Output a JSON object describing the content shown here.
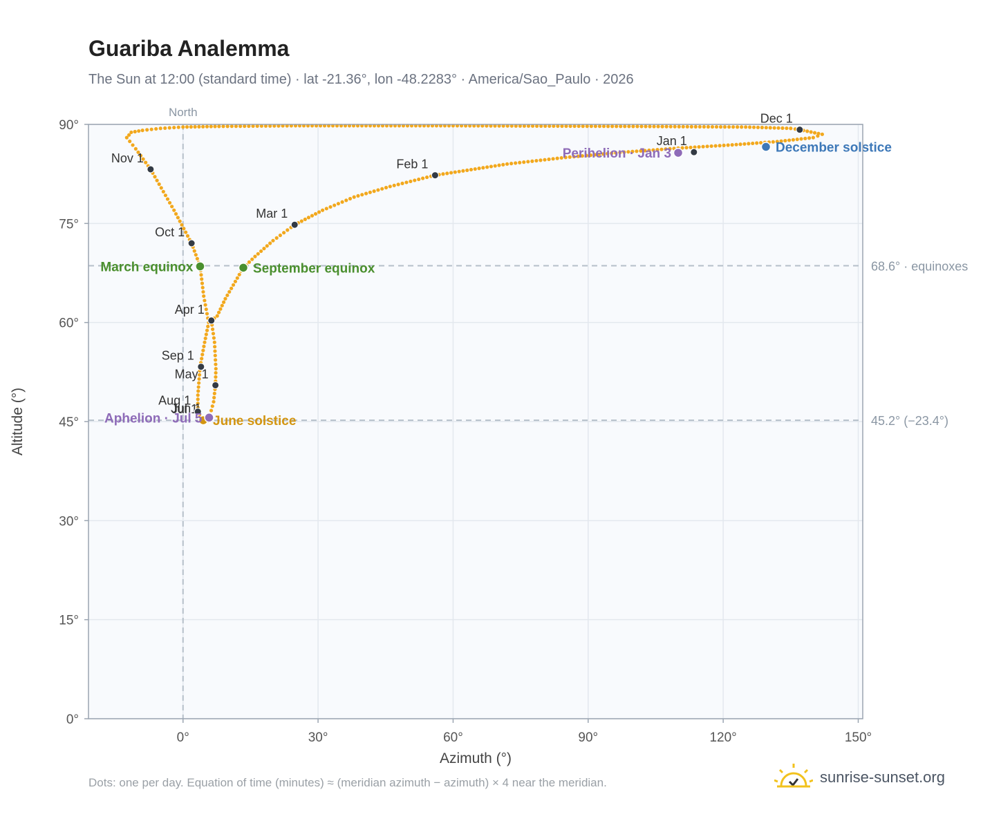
{
  "header": {
    "title": "Guariba Analemma",
    "subtitle": "The Sun at 12:00 (standard time) · lat -21.36°, lon -48.2283° · America/Sao_Paulo · 2026"
  },
  "footer": {
    "note": "Dots: one per day. Equation of time (minutes) ≈ (meridian azimuth − azimuth) × 4 near the meridian.",
    "brand": "sunrise-sunset.org",
    "brand_icon": "sun-rising-icon"
  },
  "chart_data": {
    "type": "scatter",
    "xlabel": "Azimuth (°)",
    "ylabel": "Altitude (°)",
    "xlim": [
      -21,
      151
    ],
    "ylim": [
      0,
      90
    ],
    "x_ticks": [
      {
        "value": 0,
        "label": "0°"
      },
      {
        "value": 30,
        "label": "30°"
      },
      {
        "value": 60,
        "label": "60°"
      },
      {
        "value": 90,
        "label": "90°"
      },
      {
        "value": 120,
        "label": "120°"
      },
      {
        "value": 150,
        "label": "150°"
      }
    ],
    "y_ticks": [
      {
        "value": 0,
        "label": "0°"
      },
      {
        "value": 15,
        "label": "15°"
      },
      {
        "value": 30,
        "label": "30°"
      },
      {
        "value": 45,
        "label": "45°"
      },
      {
        "value": 60,
        "label": "60°"
      },
      {
        "value": 75,
        "label": "75°"
      },
      {
        "value": 90,
        "label": "90°"
      }
    ],
    "grid": true,
    "meridian": {
      "azimuth": 0,
      "label": "North"
    },
    "reference_lines": [
      {
        "altitude": 68.6,
        "label": "68.6° · equinoxes"
      },
      {
        "altitude": 45.2,
        "label": "45.2° (−23.4°)"
      }
    ],
    "path_color": "#f2a81d",
    "path": [
      [
        137.0,
        89.2
      ],
      [
        142.0,
        88.5
      ],
      [
        140.0,
        88.0
      ],
      [
        132.0,
        87.4
      ],
      [
        122.0,
        86.9
      ],
      [
        110.0,
        86.4
      ],
      [
        98.0,
        85.8
      ],
      [
        85.0,
        85.0
      ],
      [
        72.0,
        84.0
      ],
      [
        56.0,
        82.3
      ],
      [
        46.0,
        80.6
      ],
      [
        38.0,
        79.0
      ],
      [
        31.0,
        77.0
      ],
      [
        24.8,
        74.8
      ],
      [
        20.0,
        72.4
      ],
      [
        16.0,
        70.0
      ],
      [
        13.4,
        68.3
      ],
      [
        9.4,
        63.6
      ],
      [
        7.6,
        61.0
      ],
      [
        6.3,
        60.3
      ],
      [
        7.0,
        57.0
      ],
      [
        7.3,
        53.0
      ],
      [
        7.2,
        50.5
      ],
      [
        6.8,
        48.0
      ],
      [
        6.0,
        46.0
      ],
      [
        5.0,
        45.2
      ],
      [
        4.0,
        45.6
      ],
      [
        3.3,
        46.5
      ],
      [
        3.3,
        49.0
      ],
      [
        3.8,
        53.3
      ],
      [
        4.8,
        57.0
      ],
      [
        5.7,
        60.0
      ],
      [
        4.6,
        64.0
      ],
      [
        3.8,
        68.5
      ],
      [
        1.9,
        72.0
      ],
      [
        -2.0,
        77.0
      ],
      [
        -7.2,
        83.2
      ],
      [
        -10.5,
        86.3
      ],
      [
        -12.5,
        88.0
      ],
      [
        -11.5,
        88.8
      ],
      [
        -9.0,
        89.1
      ],
      [
        -5.0,
        89.4
      ],
      [
        0.0,
        89.6
      ],
      [
        8.0,
        89.7
      ],
      [
        25.0,
        89.8
      ],
      [
        60.0,
        89.8
      ],
      [
        100.0,
        89.7
      ],
      [
        125.0,
        89.6
      ],
      [
        135.0,
        89.4
      ],
      [
        137.0,
        89.2
      ]
    ],
    "months": [
      {
        "label": "Jan 1",
        "x": 113.5,
        "y": 85.8
      },
      {
        "label": "Feb 1",
        "x": 56.0,
        "y": 82.3
      },
      {
        "label": "Mar 1",
        "x": 24.8,
        "y": 74.8
      },
      {
        "label": "Apr 1",
        "x": 6.3,
        "y": 60.3
      },
      {
        "label": "May 1",
        "x": 7.2,
        "y": 50.5
      },
      {
        "label": "Jun 1",
        "x": 5.6,
        "y": 45.3
      },
      {
        "label": "Jul 1",
        "x": 4.8,
        "y": 45.2
      },
      {
        "label": "Aug 1",
        "x": 3.3,
        "y": 46.5
      },
      {
        "label": "Sep 1",
        "x": 4.0,
        "y": 53.3
      },
      {
        "label": "Oct 1",
        "x": 1.9,
        "y": 72.0
      },
      {
        "label": "Nov 1",
        "x": -7.2,
        "y": 83.2
      },
      {
        "label": "Dec 1",
        "x": 137.0,
        "y": 89.2
      }
    ],
    "events": [
      {
        "label": "March equinox",
        "x": 3.8,
        "y": 68.5,
        "color": "#4a8f2e"
      },
      {
        "label": "September equinox",
        "x": 13.4,
        "y": 68.3,
        "color": "#4a8f2e"
      },
      {
        "label": "June solstice",
        "x": 4.5,
        "y": 45.2,
        "color": "#d39511"
      },
      {
        "label": "December solstice",
        "x": 129.5,
        "y": 86.6,
        "color": "#3d78b8"
      },
      {
        "label": "Perihelion · Jan 3",
        "x": 110.0,
        "y": 85.7,
        "color": "#8e6bb8"
      },
      {
        "label": "Aphelion · Jul 5",
        "x": 5.8,
        "y": 45.6,
        "color": "#8e6bb8"
      }
    ]
  }
}
